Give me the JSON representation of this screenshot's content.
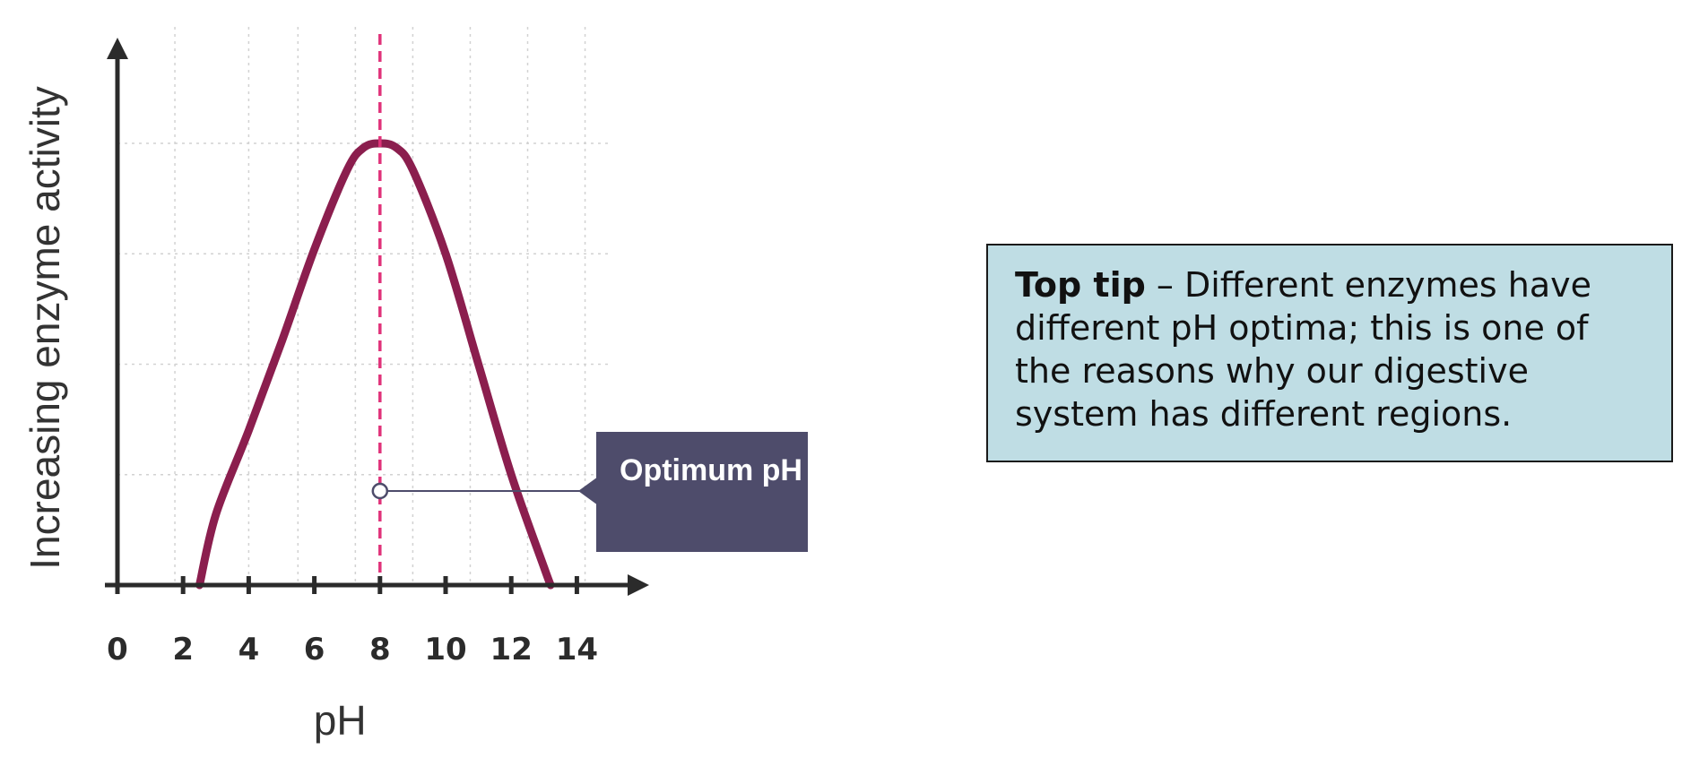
{
  "chart_data": {
    "type": "line",
    "xlabel": "pH",
    "ylabel": "Increasing enzyme activity",
    "xlim": [
      0,
      14
    ],
    "x_ticks": [
      "0",
      "2",
      "4",
      "6",
      "8",
      "10",
      "12",
      "14"
    ],
    "highlight_tick": "8",
    "grid": true,
    "series": [
      {
        "x": [
          2.5,
          3,
          4,
          5,
          6,
          7,
          7.5,
          8,
          8.5,
          9,
          10,
          11,
          12,
          13,
          13.2
        ],
        "y": [
          0,
          16,
          35,
          55,
          76,
          94,
          99,
          100,
          99,
          94,
          75,
          50,
          25,
          4,
          0
        ]
      }
    ],
    "optimum_x": 8,
    "callout_text": "Optimum pH",
    "colors": {
      "curve": "#8b1e4e",
      "optimum_line": "#e0337a",
      "highlight_tick": "#e0337a",
      "axis": "#2b2b2b",
      "grid": "#d2d2d2",
      "callout_bg": "#4e4c6b",
      "tip_bg": "#bfdde4"
    }
  },
  "tip": {
    "title": "Top tip",
    "text": " – Different enzymes have different pH optima; this is one of the reasons why our digestive system has different regions."
  }
}
